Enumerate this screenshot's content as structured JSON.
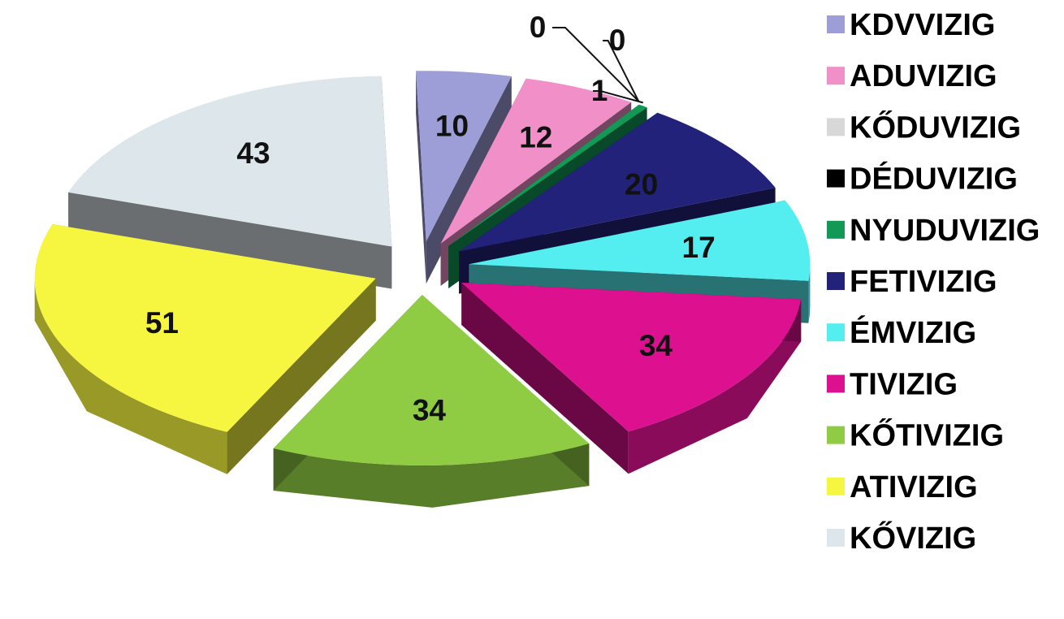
{
  "chart_data": {
    "type": "pie",
    "title": "",
    "legend_position": "right",
    "series": [
      {
        "label": "KDVVIZIG",
        "value": 10,
        "color": "#9d9dd8"
      },
      {
        "label": "ADUVIZIG",
        "value": 12,
        "color": "#f08fc8"
      },
      {
        "label": "KŐDUVIZIG",
        "value": 0,
        "color": "#d8d8d8"
      },
      {
        "label": "DÉDUVIZIG",
        "value": 0,
        "color": "#000000"
      },
      {
        "label": "NYUDUVIZIG",
        "value": 1,
        "color": "#119955"
      },
      {
        "label": "FETIVIZIG",
        "value": 20,
        "color": "#22227a"
      },
      {
        "label": "ÉMVIZIG",
        "value": 17,
        "color": "#55eef0"
      },
      {
        "label": "TIVIZIG",
        "value": 34,
        "color": "#dd1190"
      },
      {
        "label": "KŐTIVIZIG",
        "value": 34,
        "color": "#8fcc44"
      },
      {
        "label": "ATIVIZIG",
        "value": 51,
        "color": "#f6f640"
      },
      {
        "label": "KŐVIZIG",
        "value": 43,
        "color": "#dde6ea"
      }
    ]
  }
}
